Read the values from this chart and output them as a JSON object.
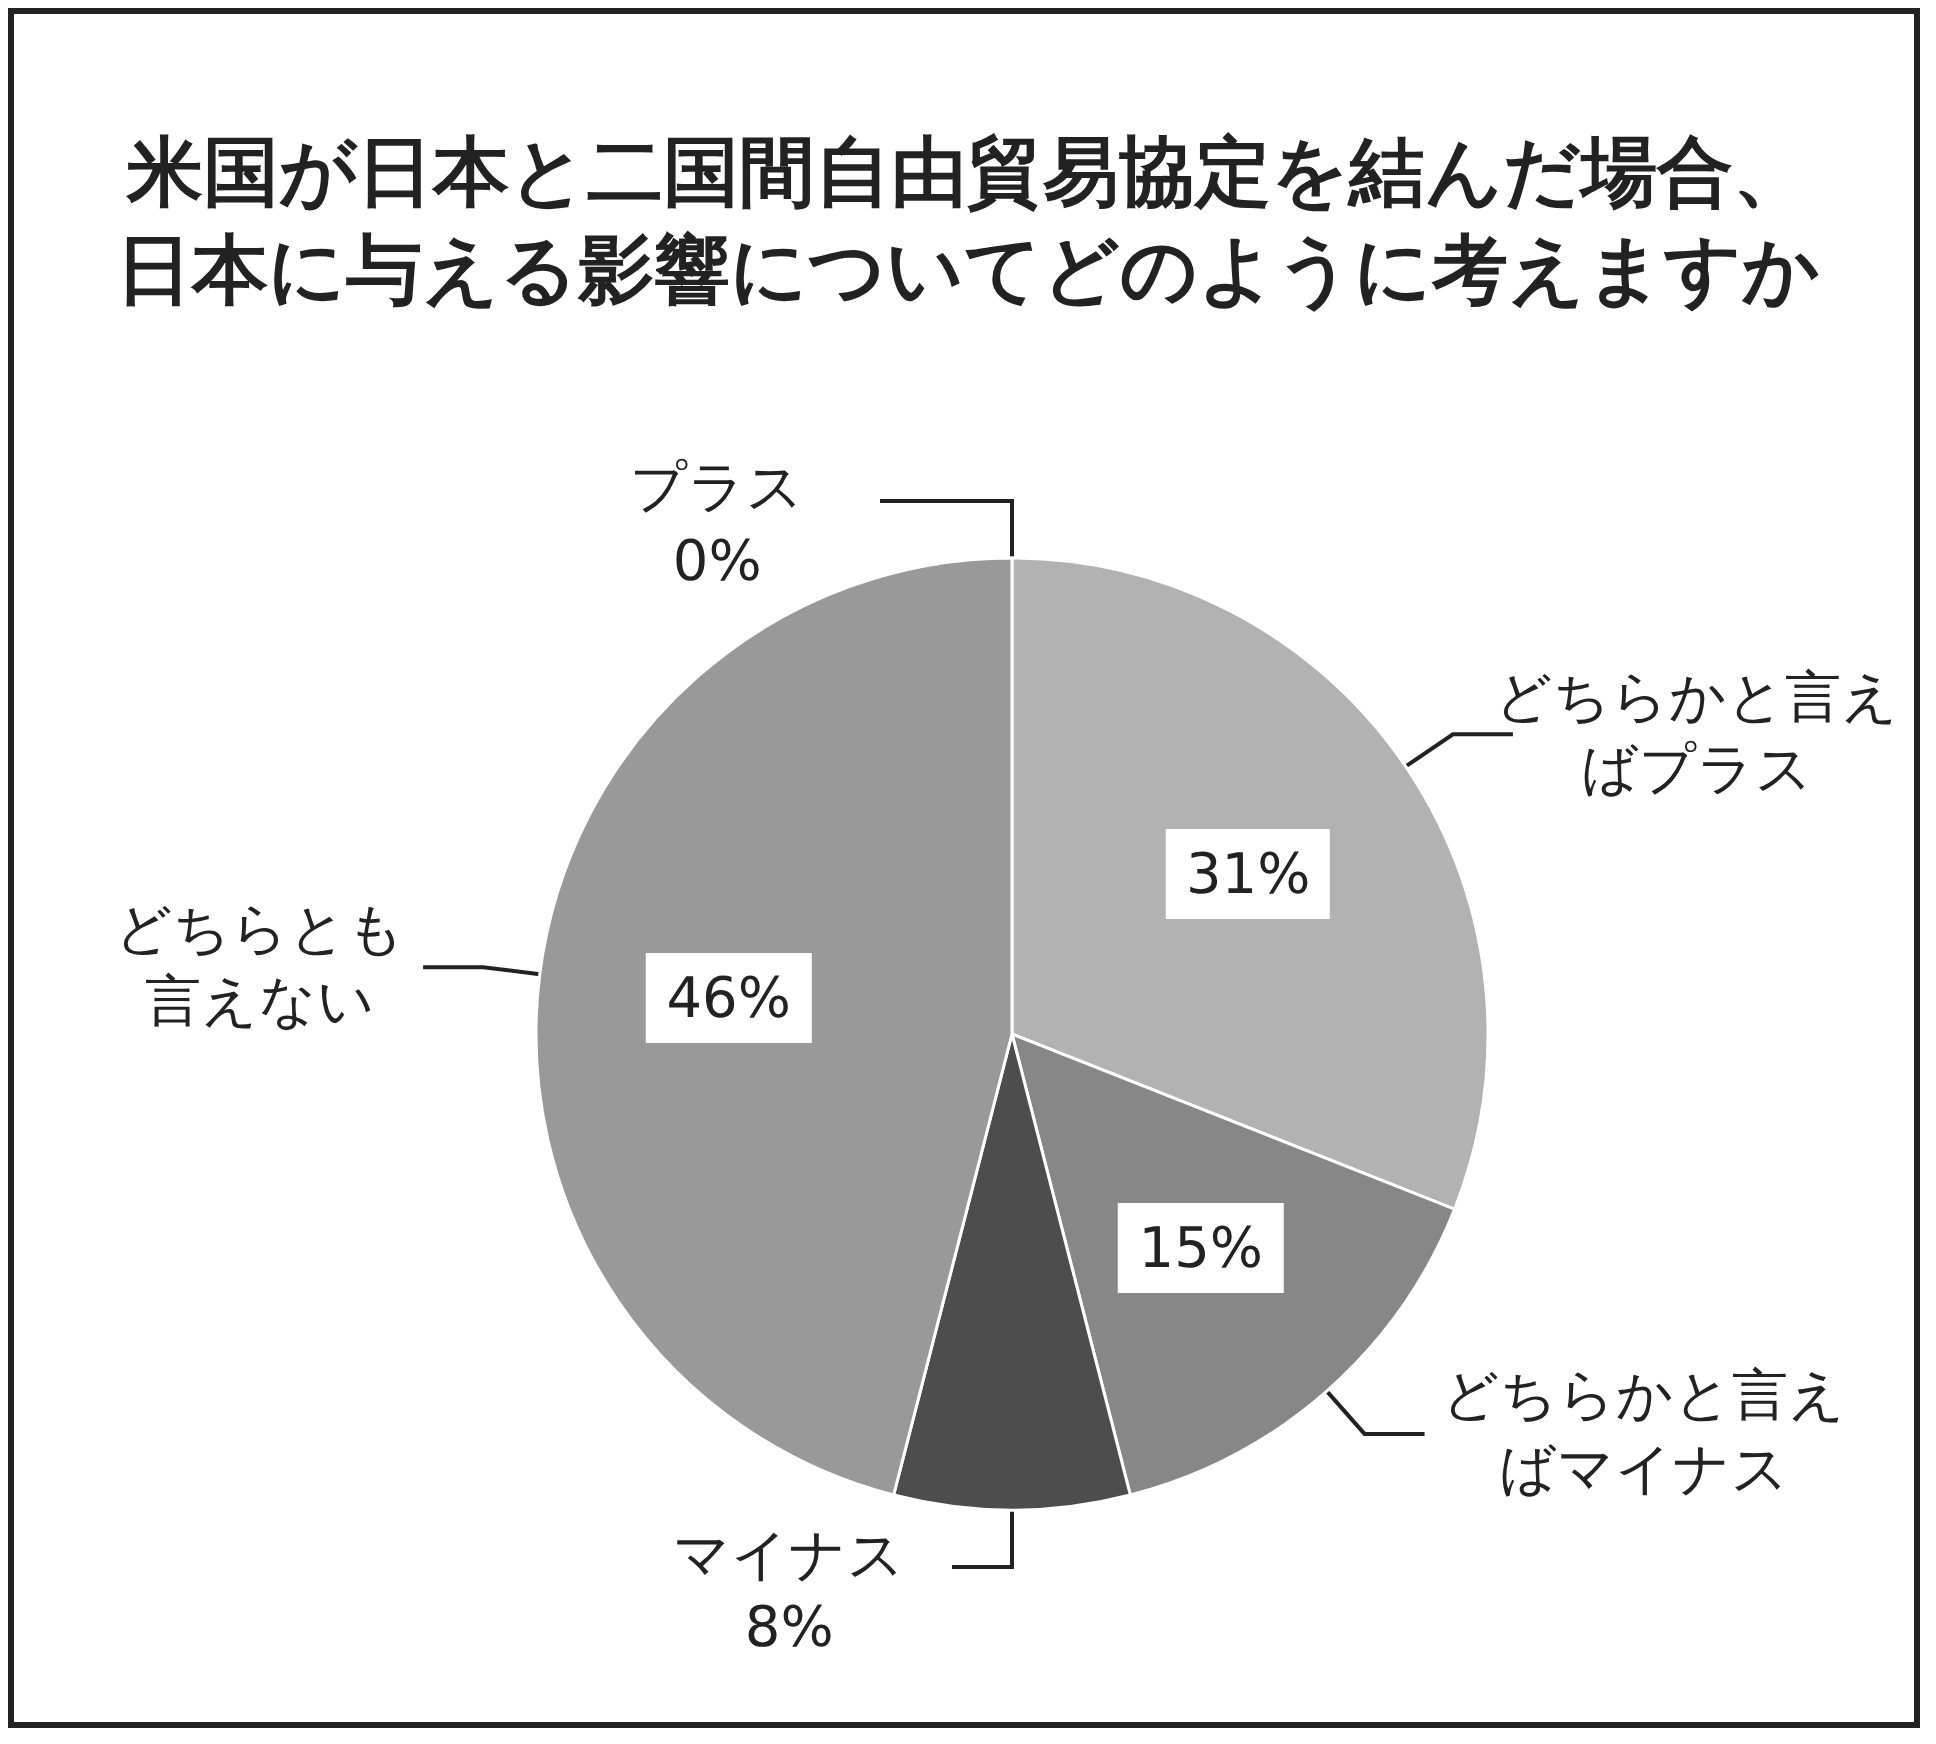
{
  "chart_data": {
    "type": "pie",
    "title": "米国が日本と二国間自由貿易協定を結んだ場合、日本に与える影響についてどのように考えますか",
    "categories": [
      "プラス",
      "どちらかと言えばプラス",
      "どちらかと言えばマイナス",
      "マイナス",
      "どちらとも言えない"
    ],
    "values": [
      0,
      31,
      15,
      8,
      46
    ],
    "colors": [
      "#a6a6a6",
      "#b2b2b2",
      "#878787",
      "#4d4d4d",
      "#999999"
    ],
    "value_labels": [
      "0%",
      "31%",
      "15%",
      "8%",
      "46%"
    ]
  }
}
